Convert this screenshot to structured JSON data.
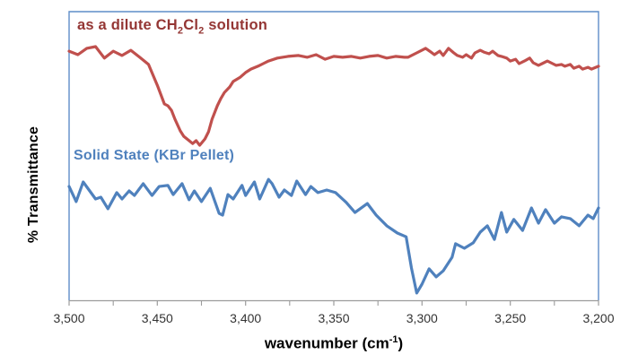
{
  "labels": {
    "y_axis_title": "% Transmittance",
    "x_axis_title": {
      "pre": "wavenumber (cm",
      "sup": "-1",
      "post": ")"
    },
    "solution_label": {
      "pre": "as a dilute CH",
      "sub1": "2",
      "mid": "Cl",
      "sub2": "2",
      "post": " solution"
    },
    "solid_label": "Solid State (KBr Pellet)"
  },
  "chart_data": {
    "type": "line",
    "title": "",
    "xlabel": "wavenumber (cm-1)",
    "ylabel": "% Transmittance",
    "background": "#FFFFFF",
    "border_color": "#5F8DC9",
    "axis_color": "#9C9C9C",
    "tick_label_color": "#333333",
    "grid": false,
    "legend_position": "inline-annotations",
    "x_axis": {
      "min": 3200,
      "max": 3500,
      "reversed": true,
      "major_tick_interval": 50,
      "minor_tick_interval": 25,
      "tick_labels": [
        "3,500",
        "3,450",
        "3,400",
        "3,350",
        "3,300",
        "3,250",
        "3,200"
      ]
    },
    "y_axis": {
      "min": 0,
      "max": 100,
      "tick_labels": []
    },
    "series": [
      {
        "id": "solution",
        "name": "as a dilute CH2Cl2 solution",
        "color": "#C0504D",
        "label_color": "#943634",
        "absorption_minimum_x": 3430,
        "x": [
          3500,
          3495,
          3490,
          3485,
          3480,
          3475,
          3470,
          3465,
          3460,
          3455,
          3450,
          3446,
          3444,
          3442,
          3440,
          3437,
          3435,
          3432,
          3430,
          3428,
          3426,
          3423,
          3421,
          3419,
          3416,
          3414,
          3412,
          3409,
          3407,
          3403,
          3400,
          3397,
          3393,
          3390,
          3387,
          3382,
          3376,
          3370,
          3365,
          3360,
          3355,
          3350,
          3345,
          3340,
          3335,
          3330,
          3325,
          3320,
          3315,
          3310,
          3308,
          3303,
          3298,
          3295,
          3293,
          3290,
          3288,
          3285,
          3282,
          3280,
          3277,
          3275,
          3272,
          3270,
          3267,
          3265,
          3262,
          3260,
          3257,
          3255,
          3252,
          3250,
          3247,
          3245,
          3242,
          3239,
          3237,
          3234,
          3232,
          3229,
          3226,
          3224,
          3221,
          3219,
          3216,
          3214,
          3211,
          3209,
          3206,
          3204,
          3200
        ],
        "y": [
          86.3,
          85.1,
          87.3,
          87.9,
          83.9,
          86.3,
          84.8,
          86.6,
          84.2,
          81.7,
          74.5,
          68.0,
          67.4,
          65.8,
          62.7,
          58.7,
          56.8,
          55.3,
          54.3,
          55.3,
          53.7,
          55.9,
          58.4,
          62.7,
          67.4,
          69.9,
          72.0,
          73.9,
          75.8,
          77.3,
          78.9,
          80.1,
          81.1,
          82.0,
          82.9,
          83.9,
          84.5,
          84.8,
          84.2,
          85.1,
          83.5,
          84.5,
          84.2,
          84.5,
          83.9,
          84.5,
          84.8,
          83.9,
          84.5,
          84.2,
          84.2,
          85.7,
          87.3,
          86.0,
          85.1,
          86.3,
          84.8,
          87.3,
          85.7,
          84.8,
          84.2,
          85.1,
          83.9,
          85.7,
          86.6,
          86.0,
          85.4,
          86.3,
          84.8,
          84.5,
          83.9,
          82.9,
          83.5,
          82.0,
          82.9,
          83.9,
          82.3,
          81.4,
          82.0,
          82.9,
          82.0,
          81.4,
          81.7,
          81.1,
          81.7,
          80.4,
          81.1,
          80.1,
          80.7,
          80.1,
          81.1
        ]
      },
      {
        "id": "solid-state",
        "name": "Solid State (KBr Pellet)",
        "color": "#4F81BD",
        "label_color": "#4F81BD",
        "absorption_minimum_x": 3303,
        "x": [
          3500,
          3496,
          3492,
          3485,
          3482,
          3478,
          3473,
          3470,
          3466,
          3463,
          3458,
          3453,
          3449,
          3444,
          3441,
          3436,
          3432,
          3429,
          3425,
          3420,
          3415,
          3413,
          3410,
          3407,
          3402,
          3400,
          3395,
          3392,
          3387,
          3385,
          3381,
          3378,
          3374,
          3371,
          3366,
          3363,
          3359,
          3354,
          3349,
          3343,
          3338,
          3331,
          3326,
          3320,
          3314,
          3309,
          3306,
          3303,
          3300,
          3296,
          3292,
          3288,
          3283,
          3281,
          3276,
          3271,
          3267,
          3263,
          3259,
          3255,
          3252,
          3248,
          3243,
          3238,
          3234,
          3230,
          3225,
          3221,
          3216,
          3211,
          3206,
          3203,
          3200
        ],
        "y": [
          39.4,
          34.2,
          41.0,
          35.1,
          35.7,
          31.7,
          37.3,
          35.1,
          37.9,
          36.3,
          40.4,
          36.3,
          39.4,
          39.8,
          36.6,
          40.4,
          34.8,
          37.9,
          34.2,
          38.8,
          30.1,
          29.5,
          36.6,
          35.1,
          39.8,
          36.3,
          41.0,
          35.1,
          41.9,
          40.4,
          35.7,
          38.2,
          36.3,
          41.3,
          36.6,
          39.4,
          37.3,
          38.2,
          37.3,
          33.9,
          30.4,
          33.5,
          29.5,
          25.8,
          23.3,
          22.0,
          11.2,
          2.5,
          5.6,
          10.9,
          8.1,
          10.2,
          14.9,
          19.6,
          18.0,
          19.9,
          23.6,
          25.8,
          21.1,
          30.4,
          23.6,
          28.0,
          24.2,
          32.0,
          26.7,
          31.4,
          26.7,
          28.9,
          28.3,
          25.8,
          29.5,
          28.3,
          32.0
        ]
      }
    ]
  }
}
